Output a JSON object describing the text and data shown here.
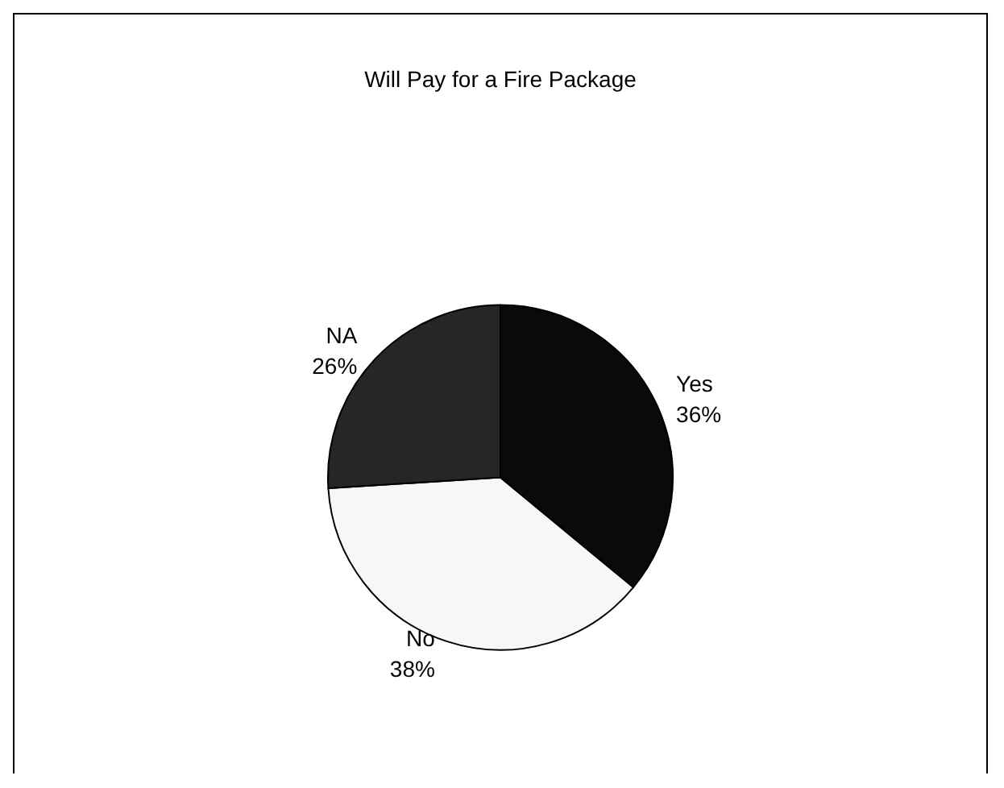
{
  "chart_data": {
    "type": "pie",
    "title": "Will Pay for a Fire Package",
    "categories": [
      "Yes",
      "No",
      "NA"
    ],
    "values": [
      36,
      38,
      26
    ],
    "value_labels": [
      "36%",
      "38%",
      "26%"
    ],
    "colors": [
      "#0a0a0a",
      "#f7f7f7",
      "#262626"
    ],
    "legend": false
  }
}
